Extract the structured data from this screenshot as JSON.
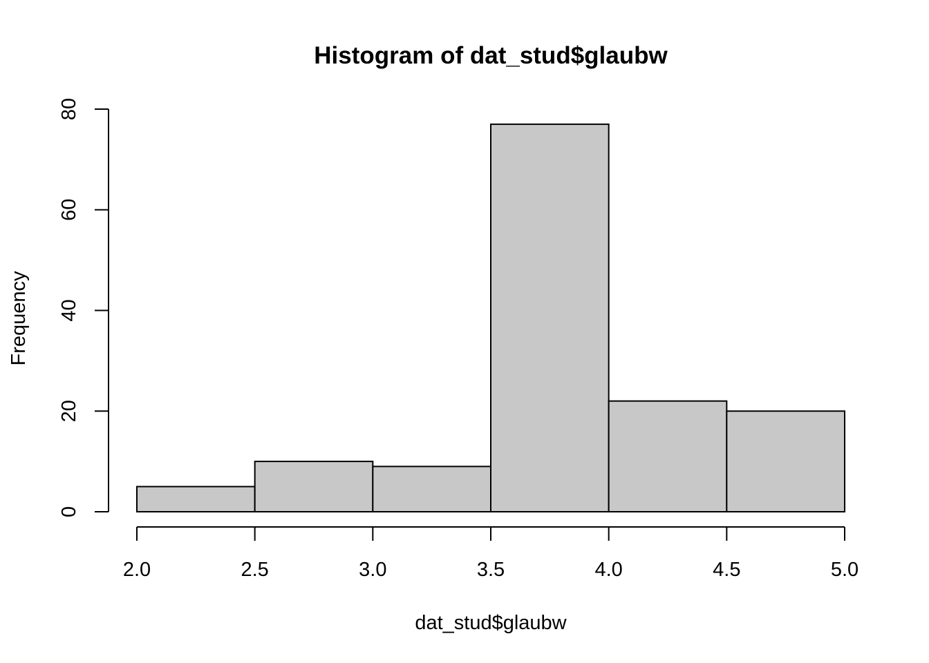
{
  "chart_data": {
    "type": "bar",
    "title": "Histogram of dat_stud$glaubw",
    "xlabel": "dat_stud$glaubw",
    "ylabel": "Frequency",
    "bins": [
      {
        "from": 2.0,
        "to": 2.5,
        "count": 5
      },
      {
        "from": 2.5,
        "to": 3.0,
        "count": 10
      },
      {
        "from": 3.0,
        "to": 3.5,
        "count": 9
      },
      {
        "from": 3.5,
        "to": 4.0,
        "count": 77
      },
      {
        "from": 4.0,
        "to": 4.5,
        "count": 22
      },
      {
        "from": 4.5,
        "to": 5.0,
        "count": 20
      }
    ],
    "xlim": [
      2.0,
      5.0
    ],
    "ylim": [
      0,
      80
    ],
    "x_ticks": [
      "2.0",
      "2.5",
      "3.0",
      "3.5",
      "4.0",
      "4.5",
      "5.0"
    ],
    "y_ticks": [
      "0",
      "20",
      "40",
      "60",
      "80"
    ],
    "bar_color": "#c8c8c8",
    "grid": false,
    "legend": "none"
  }
}
